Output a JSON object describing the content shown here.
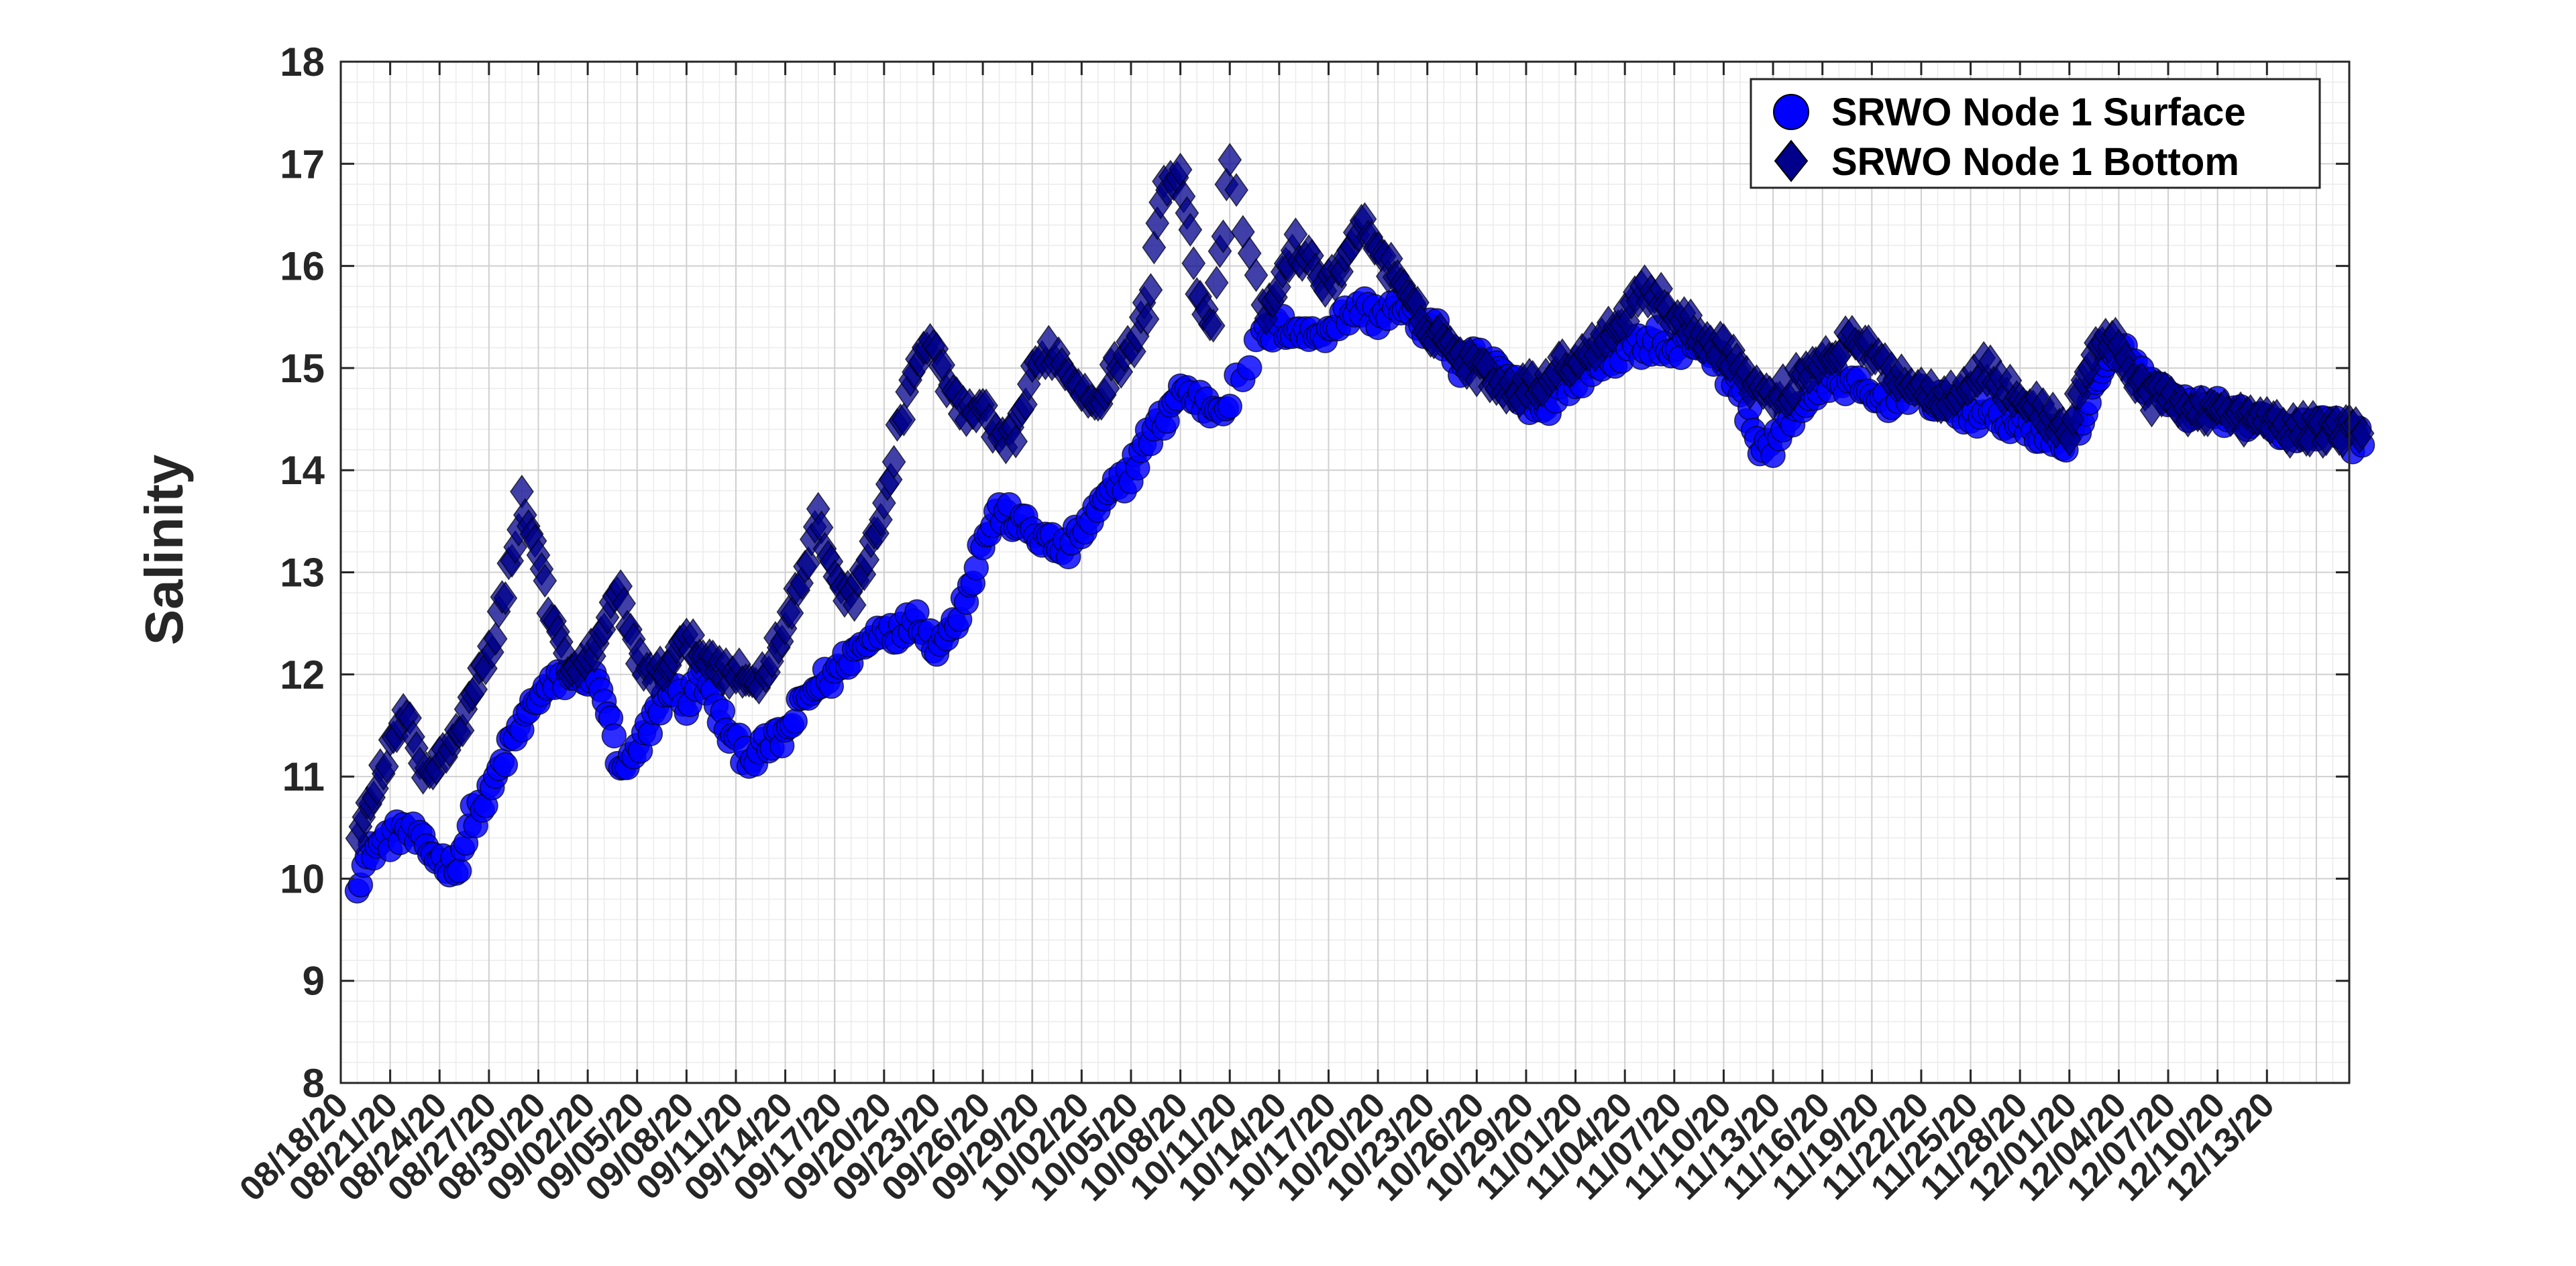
{
  "chart_data": {
    "type": "scatter",
    "title": "",
    "xlabel": "",
    "ylabel": "Salinity",
    "ylim": [
      8,
      18
    ],
    "yticks": [
      8,
      9,
      10,
      11,
      12,
      13,
      14,
      15,
      16,
      17,
      18
    ],
    "xlim": [
      "2020-08-18",
      "2020-12-18"
    ],
    "xtick_labels": [
      "08/18/20",
      "08/21/20",
      "08/24/20",
      "08/27/20",
      "08/30/20",
      "09/02/20",
      "09/05/20",
      "09/08/20",
      "09/11/20",
      "09/14/20",
      "09/17/20",
      "09/20/20",
      "09/23/20",
      "09/26/20",
      "09/29/20",
      "10/02/20",
      "10/05/20",
      "10/08/20",
      "10/11/20",
      "10/14/20",
      "10/17/20",
      "10/20/20",
      "10/23/20",
      "10/26/20",
      "10/29/20",
      "11/01/20",
      "11/04/20",
      "11/07/20",
      "11/10/20",
      "11/13/20",
      "11/16/20",
      "11/19/20",
      "11/22/20",
      "11/25/20",
      "11/28/20",
      "12/01/20",
      "12/04/20",
      "12/07/20",
      "12/10/20",
      "12/13/20"
    ],
    "grid": true,
    "minor_grid": true,
    "legend_position": "top-right",
    "series": [
      {
        "name": "SRWO Node 1 Surface",
        "marker": "circle",
        "color": "#0000FF",
        "x": [
          "2020-08-19",
          "2020-08-20",
          "2020-08-21",
          "2020-08-22",
          "2020-08-23",
          "2020-08-24",
          "2020-08-25",
          "2020-08-26",
          "2020-08-27",
          "2020-08-28",
          "2020-08-29",
          "2020-08-30",
          "2020-08-31",
          "2020-09-01",
          "2020-09-02",
          "2020-09-03",
          "2020-09-04",
          "2020-09-05",
          "2020-09-06",
          "2020-09-07",
          "2020-09-08",
          "2020-09-09",
          "2020-09-10",
          "2020-09-11",
          "2020-09-12",
          "2020-09-13",
          "2020-09-14",
          "2020-09-15",
          "2020-09-16",
          "2020-09-17",
          "2020-09-18",
          "2020-09-19",
          "2020-09-20",
          "2020-09-21",
          "2020-09-22",
          "2020-09-23",
          "2020-09-24",
          "2020-09-25",
          "2020-09-26",
          "2020-09-27",
          "2020-09-28",
          "2020-09-29",
          "2020-09-30",
          "2020-10-01",
          "2020-10-02",
          "2020-10-03",
          "2020-10-04",
          "2020-10-05",
          "2020-10-06",
          "2020-10-07",
          "2020-10-08",
          "2020-10-09",
          "2020-10-10",
          "2020-10-11",
          "2020-10-13",
          "2020-10-14",
          "2020-10-15",
          "2020-10-16",
          "2020-10-17",
          "2020-10-18",
          "2020-10-19",
          "2020-10-20",
          "2020-10-21",
          "2020-10-22",
          "2020-10-23",
          "2020-10-24",
          "2020-10-25",
          "2020-10-26",
          "2020-10-27",
          "2020-10-28",
          "2020-10-29",
          "2020-10-30",
          "2020-10-31",
          "2020-11-01",
          "2020-11-02",
          "2020-11-03",
          "2020-11-04",
          "2020-11-05",
          "2020-11-06",
          "2020-11-07",
          "2020-11-08",
          "2020-11-09",
          "2020-11-10",
          "2020-11-11",
          "2020-11-12",
          "2020-11-13",
          "2020-11-14",
          "2020-11-15",
          "2020-11-16",
          "2020-11-17",
          "2020-11-18",
          "2020-11-19",
          "2020-11-20",
          "2020-11-21",
          "2020-11-22",
          "2020-11-23",
          "2020-11-24",
          "2020-11-25",
          "2020-11-26",
          "2020-11-27",
          "2020-11-28",
          "2020-11-29",
          "2020-11-30",
          "2020-12-01",
          "2020-12-02",
          "2020-12-03",
          "2020-12-04",
          "2020-12-05",
          "2020-12-06",
          "2020-12-07",
          "2020-12-08",
          "2020-12-09",
          "2020-12-10",
          "2020-12-11",
          "2020-12-12",
          "2020-12-13",
          "2020-12-14",
          "2020-12-15",
          "2020-12-16",
          "2020-12-17",
          "2020-12-18"
        ],
        "y": [
          10.0,
          10.3,
          10.4,
          10.5,
          10.3,
          10.2,
          10.1,
          10.6,
          10.8,
          11.2,
          11.5,
          11.8,
          11.9,
          12.0,
          12.0,
          11.8,
          11.0,
          11.2,
          11.6,
          11.9,
          11.7,
          12.0,
          11.6,
          11.3,
          11.2,
          11.3,
          11.4,
          11.7,
          11.9,
          12.0,
          12.2,
          12.3,
          12.5,
          12.4,
          12.6,
          12.3,
          12.4,
          12.8,
          13.3,
          13.6,
          13.5,
          13.4,
          13.3,
          13.2,
          13.4,
          13.6,
          13.8,
          14.0,
          14.3,
          14.5,
          14.8,
          14.7,
          14.6,
          14.7,
          15.3,
          15.4,
          15.4,
          15.3,
          15.4,
          15.5,
          15.6,
          15.5,
          15.6,
          15.5,
          15.4,
          15.3,
          15.0,
          15.1,
          15.0,
          14.9,
          14.7,
          14.6,
          14.8,
          14.9,
          15.0,
          15.1,
          15.2,
          15.2,
          15.3,
          15.1,
          15.3,
          15.2,
          15.0,
          14.8,
          14.3,
          14.2,
          14.5,
          14.7,
          14.8,
          14.9,
          14.8,
          14.7,
          14.7,
          14.8,
          14.7,
          14.7,
          14.6,
          14.5,
          14.6,
          14.5,
          14.4,
          14.4,
          14.3,
          14.3,
          14.6,
          14.9,
          15.2,
          15.0,
          14.8,
          14.7,
          14.6,
          14.6,
          14.6,
          14.5,
          14.5,
          14.4,
          14.4,
          14.4,
          14.4,
          14.5,
          14.3
        ]
      },
      {
        "name": "SRWO Node 1 Bottom",
        "marker": "diamond",
        "color": "#00008B",
        "x": [
          "2020-08-19",
          "2020-08-20",
          "2020-08-21",
          "2020-08-22",
          "2020-08-23",
          "2020-08-24",
          "2020-08-25",
          "2020-08-26",
          "2020-08-27",
          "2020-08-28",
          "2020-08-29",
          "2020-08-30",
          "2020-08-31",
          "2020-09-01",
          "2020-09-02",
          "2020-09-03",
          "2020-09-04",
          "2020-09-05",
          "2020-09-06",
          "2020-09-07",
          "2020-09-08",
          "2020-09-09",
          "2020-09-10",
          "2020-09-11",
          "2020-09-12",
          "2020-09-13",
          "2020-09-14",
          "2020-09-15",
          "2020-09-16",
          "2020-09-17",
          "2020-09-18",
          "2020-09-19",
          "2020-09-20",
          "2020-09-21",
          "2020-09-22",
          "2020-09-23",
          "2020-09-24",
          "2020-09-25",
          "2020-09-26",
          "2020-09-27",
          "2020-09-28",
          "2020-09-29",
          "2020-09-30",
          "2020-10-01",
          "2020-10-02",
          "2020-10-03",
          "2020-10-04",
          "2020-10-05",
          "2020-10-06",
          "2020-10-07",
          "2020-10-08",
          "2020-10-09",
          "2020-10-10",
          "2020-10-11",
          "2020-10-13",
          "2020-10-14",
          "2020-10-15",
          "2020-10-16",
          "2020-10-17",
          "2020-10-18",
          "2020-10-19",
          "2020-10-20",
          "2020-10-21",
          "2020-10-22",
          "2020-10-23",
          "2020-10-24",
          "2020-10-25",
          "2020-10-26",
          "2020-10-27",
          "2020-10-28",
          "2020-10-29",
          "2020-10-30",
          "2020-10-31",
          "2020-11-01",
          "2020-11-02",
          "2020-11-03",
          "2020-11-04",
          "2020-11-05",
          "2020-11-06",
          "2020-11-07",
          "2020-11-08",
          "2020-11-09",
          "2020-11-10",
          "2020-11-11",
          "2020-11-12",
          "2020-11-13",
          "2020-11-14",
          "2020-11-15",
          "2020-11-16",
          "2020-11-17",
          "2020-11-18",
          "2020-11-19",
          "2020-11-20",
          "2020-11-21",
          "2020-11-22",
          "2020-11-23",
          "2020-11-24",
          "2020-11-25",
          "2020-11-26",
          "2020-11-27",
          "2020-11-28",
          "2020-11-29",
          "2020-11-30",
          "2020-12-01",
          "2020-12-02",
          "2020-12-03",
          "2020-12-04",
          "2020-12-05",
          "2020-12-06",
          "2020-12-07",
          "2020-12-08",
          "2020-12-09",
          "2020-12-10",
          "2020-12-11",
          "2020-12-12",
          "2020-12-13",
          "2020-12-14",
          "2020-12-15",
          "2020-12-16",
          "2020-12-17",
          "2020-12-18"
        ],
        "y": [
          10.4,
          10.8,
          11.3,
          11.6,
          11.0,
          11.2,
          11.4,
          11.8,
          12.2,
          12.8,
          13.7,
          13.2,
          12.4,
          12.0,
          12.1,
          12.5,
          12.8,
          12.2,
          11.9,
          12.2,
          12.3,
          12.2,
          12.1,
          12.0,
          11.9,
          12.1,
          12.5,
          12.9,
          13.5,
          13.0,
          12.7,
          13.2,
          13.6,
          14.5,
          15.1,
          15.2,
          14.8,
          14.5,
          14.6,
          14.2,
          14.4,
          14.9,
          15.2,
          15.0,
          14.8,
          14.7,
          15.0,
          15.2,
          15.6,
          16.8,
          17.0,
          15.8,
          15.4,
          17.0,
          15.5,
          15.8,
          16.2,
          16.0,
          15.8,
          16.1,
          16.4,
          16.2,
          15.9,
          15.6,
          15.4,
          15.3,
          15.1,
          15.0,
          14.9,
          14.8,
          14.8,
          14.9,
          15.0,
          15.1,
          15.2,
          15.4,
          15.5,
          15.8,
          15.7,
          15.5,
          15.4,
          15.3,
          15.2,
          15.0,
          14.8,
          14.7,
          14.8,
          15.0,
          15.1,
          15.2,
          15.3,
          15.1,
          15.0,
          14.9,
          14.8,
          14.7,
          14.8,
          14.9,
          15.0,
          14.8,
          14.7,
          14.6,
          14.5,
          14.4,
          15.0,
          15.3,
          15.2,
          14.9,
          14.7,
          14.7,
          14.6,
          14.6,
          14.6,
          14.5,
          14.5,
          14.5,
          14.4,
          14.4,
          14.4,
          14.4,
          14.4
        ]
      }
    ]
  }
}
